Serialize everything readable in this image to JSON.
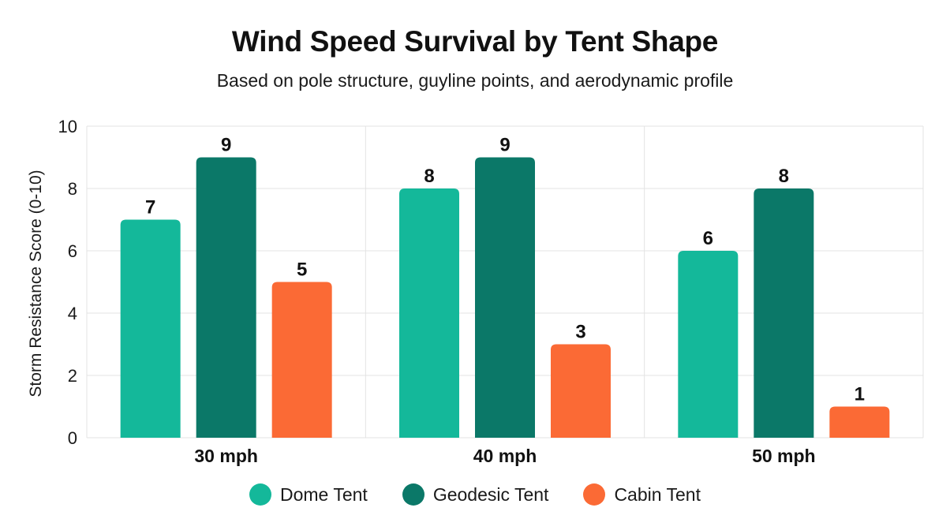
{
  "title": "Wind Speed Survival by Tent Shape",
  "subtitle": "Based on pole structure, guyline points, and aerodynamic profile",
  "chart_data": {
    "type": "bar",
    "categories": [
      "30 mph",
      "40 mph",
      "50 mph"
    ],
    "series": [
      {
        "name": "Dome Tent",
        "values": [
          7,
          8,
          6
        ],
        "color": "#14b89a"
      },
      {
        "name": "Geodesic Tent",
        "values": [
          9,
          9,
          8
        ],
        "color": "#0b7868"
      },
      {
        "name": "Cabin Tent",
        "values": [
          5,
          3,
          1
        ],
        "color": "#fb6a35"
      }
    ],
    "ylabel": "Storm Resistance Score (0-10)",
    "xlabel": "",
    "ylim": [
      0,
      10
    ],
    "yticks": [
      0,
      2,
      4,
      6,
      8,
      10
    ],
    "grid": true,
    "legend_position": "bottom"
  }
}
